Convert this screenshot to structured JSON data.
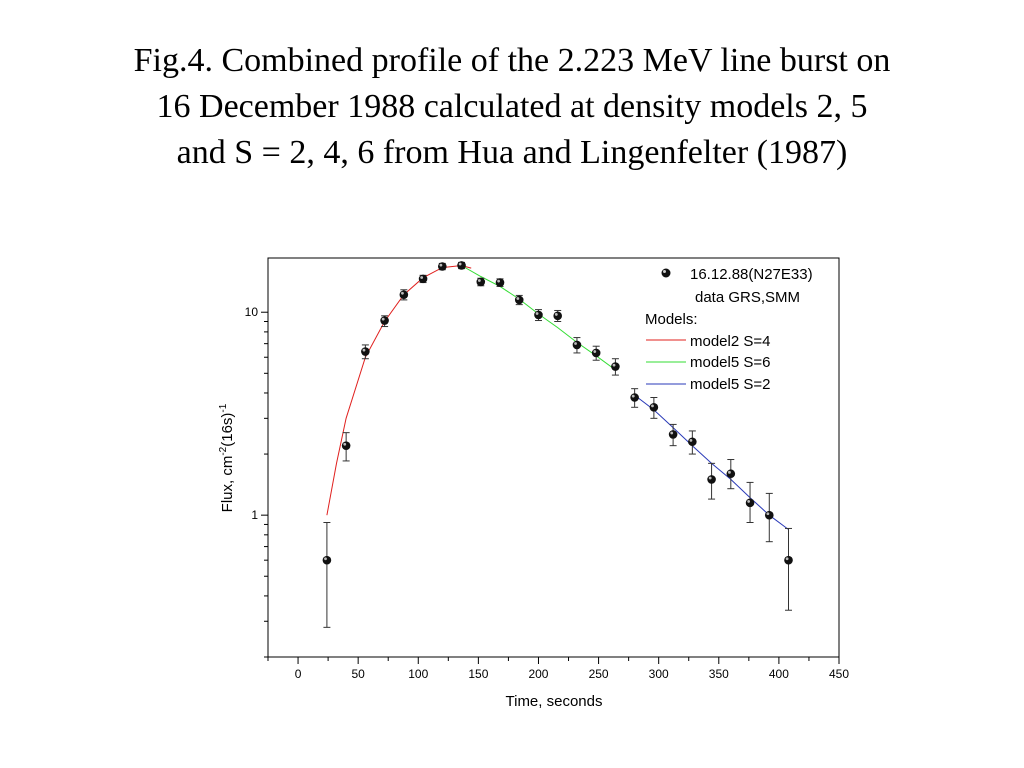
{
  "slide": {
    "title_lines": [
      "Fig.4. Combined profile of the 2.223 MeV line burst on",
      "16 December 1988 calculated at density  models 2, 5",
      "and S = 2, 4, 6 from Hua and Lingenfelter (1987)"
    ]
  },
  "chart_data": {
    "type": "scatter",
    "xlabel": "Time, seconds",
    "ylabel": "Flux, cm",
    "ylabel_sup1": "-2",
    "ylabel_mid": "(16s)",
    "ylabel_sup2": "-1",
    "xlim": [
      -25,
      450
    ],
    "ylim_log": [
      0.2,
      18.5
    ],
    "y_scale": "log",
    "x_ticks": [
      0,
      50,
      100,
      150,
      200,
      250,
      300,
      350,
      400,
      450
    ],
    "x_tick_labels": [
      "0",
      "50",
      "100",
      "150",
      "200",
      "250",
      "300",
      "350",
      "400",
      "450"
    ],
    "y_ticks": [
      1,
      10
    ],
    "y_tick_labels": [
      "1",
      "10"
    ],
    "legend_position": "top-right",
    "legend": {
      "data_label_line1": "16.12.88(N27E33)",
      "data_label_line2": "data GRS,SMM",
      "models_heading": "Models:",
      "entries": [
        {
          "label": "model2 S=4",
          "color": "#e0201e"
        },
        {
          "label": "model5 S=6",
          "color": "#33dd33"
        },
        {
          "label": "model5 S=2",
          "color": "#2a3ab8"
        }
      ]
    },
    "series": [
      {
        "name": "16.12.88(N27E33) data GRS,SMM",
        "kind": "points_with_errorbars",
        "points": [
          {
            "x": 24,
            "y": 0.6,
            "lo": 0.28,
            "hi": 0.92
          },
          {
            "x": 40,
            "y": 2.2,
            "lo": 1.85,
            "hi": 2.55
          },
          {
            "x": 56,
            "y": 6.4,
            "lo": 5.9,
            "hi": 6.9
          },
          {
            "x": 72,
            "y": 9.1,
            "lo": 8.5,
            "hi": 9.6
          },
          {
            "x": 88,
            "y": 12.2,
            "lo": 11.5,
            "hi": 12.9
          },
          {
            "x": 104,
            "y": 14.6,
            "lo": 14.0,
            "hi": 15.2
          },
          {
            "x": 120,
            "y": 16.8,
            "lo": 16.2,
            "hi": 17.4
          },
          {
            "x": 136,
            "y": 17.0,
            "lo": 16.4,
            "hi": 17.6
          },
          {
            "x": 152,
            "y": 14.1,
            "lo": 13.5,
            "hi": 14.7
          },
          {
            "x": 168,
            "y": 14.0,
            "lo": 13.4,
            "hi": 14.6
          },
          {
            "x": 184,
            "y": 11.5,
            "lo": 10.9,
            "hi": 12.1
          },
          {
            "x": 200,
            "y": 9.7,
            "lo": 9.1,
            "hi": 10.3
          },
          {
            "x": 216,
            "y": 9.6,
            "lo": 9.0,
            "hi": 10.2
          },
          {
            "x": 232,
            "y": 6.9,
            "lo": 6.3,
            "hi": 7.5
          },
          {
            "x": 248,
            "y": 6.3,
            "lo": 5.8,
            "hi": 6.8
          },
          {
            "x": 264,
            "y": 5.4,
            "lo": 4.9,
            "hi": 5.9
          },
          {
            "x": 280,
            "y": 3.8,
            "lo": 3.4,
            "hi": 4.2
          },
          {
            "x": 296,
            "y": 3.4,
            "lo": 3.0,
            "hi": 3.8
          },
          {
            "x": 312,
            "y": 2.5,
            "lo": 2.2,
            "hi": 2.8
          },
          {
            "x": 328,
            "y": 2.3,
            "lo": 2.0,
            "hi": 2.6
          },
          {
            "x": 344,
            "y": 1.5,
            "lo": 1.2,
            "hi": 1.8
          },
          {
            "x": 360,
            "y": 1.6,
            "lo": 1.35,
            "hi": 1.88
          },
          {
            "x": 376,
            "y": 1.15,
            "lo": 0.92,
            "hi": 1.45
          },
          {
            "x": 392,
            "y": 1.0,
            "lo": 0.74,
            "hi": 1.28
          },
          {
            "x": 408,
            "y": 0.6,
            "lo": 0.34,
            "hi": 0.86
          }
        ]
      },
      {
        "name": "model2 S=4",
        "kind": "line",
        "color": "#e0201e",
        "points": [
          [
            24,
            1.0
          ],
          [
            32,
            1.8
          ],
          [
            40,
            3.0
          ],
          [
            56,
            6.0
          ],
          [
            72,
            9.0
          ],
          [
            88,
            12.2
          ],
          [
            104,
            14.8
          ],
          [
            120,
            16.6
          ],
          [
            136,
            17.0
          ],
          [
            144,
            16.5
          ]
        ]
      },
      {
        "name": "model5 S=6",
        "kind": "line",
        "color": "#33dd33",
        "points": [
          [
            136,
            17.0
          ],
          [
            152,
            15.0
          ],
          [
            168,
            13.4
          ],
          [
            184,
            11.6
          ],
          [
            200,
            9.8
          ],
          [
            216,
            8.4
          ],
          [
            232,
            7.1
          ],
          [
            248,
            6.1
          ],
          [
            264,
            5.2
          ]
        ]
      },
      {
        "name": "model5 S=2",
        "kind": "line",
        "color": "#2a3ab8",
        "points": [
          [
            280,
            3.9
          ],
          [
            296,
            3.3
          ],
          [
            312,
            2.7
          ],
          [
            328,
            2.2
          ],
          [
            344,
            1.8
          ],
          [
            360,
            1.5
          ],
          [
            376,
            1.22
          ],
          [
            392,
            1.0
          ],
          [
            408,
            0.85
          ]
        ]
      }
    ]
  }
}
